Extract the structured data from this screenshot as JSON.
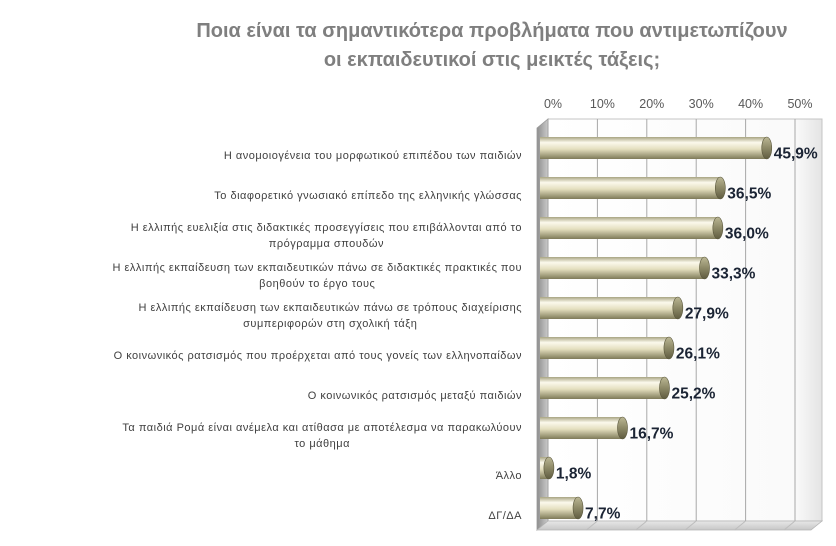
{
  "chart_data": {
    "type": "bar",
    "orientation": "horizontal",
    "title": "Ποια είναι τα σημαντικότερα προβλήματα που αντιμετωπίζουν\nοι εκπαιδευτικοί στις μεικτές τάξεις;",
    "categories": [
      "Η ανομοιογένεια του μορφωτικού επιπέδου των παιδιών",
      "Το διαφορετικό γνωσιακό επίπεδο της ελληνικής γλώσσας",
      "Η ελλιπής ευελιξία στις διδακτικές προσεγγίσεις που επιβάλλονται από το\nπρόγραμμα σπουδών",
      "Η ελλιπής εκπαίδευση των εκπαιδευτικών πάνω σε διδακτικές πρακτικές που\nβοηθούν το έργο τους",
      "Η ελλιπής εκπαίδευση των εκπαιδευτικών πάνω σε τρόπους διαχείρισης\nσυμπεριφορών στη σχολική τάξη",
      "Ο κοινωνικός ρατσισμός που προέρχεται από τους γονείς των ελληνοπαίδων",
      "Ο κοινωνικός ρατσισμός μεταξύ παιδιών",
      "Τα παιδιά Ρομά είναι ανέμελα και ατίθασα με αποτέλεσμα να παρακωλύουν\nτο μάθημα",
      "Άλλο",
      "ΔΓ/ΔΑ"
    ],
    "values": [
      45.9,
      36.5,
      36.0,
      33.3,
      27.9,
      26.1,
      25.2,
      16.7,
      1.8,
      7.7
    ],
    "data_labels": [
      "45,9%",
      "36,5%",
      "36,0%",
      "33,3%",
      "27,9%",
      "26,1%",
      "25,2%",
      "16,7%",
      "1,8%",
      "7,7%"
    ],
    "xticks": [
      0,
      10,
      20,
      30,
      40,
      50
    ],
    "xtick_labels": [
      "0%",
      "10%",
      "20%",
      "30%",
      "40%",
      "50%"
    ],
    "xlim": [
      0,
      55
    ],
    "grid": true,
    "legend": "none",
    "colors": {
      "bar_highlight": "#fbf9ec",
      "bar": "#e4dfbf",
      "bar_shadow": "#7e7a58",
      "bar_end": "#8d8967",
      "title": "#7f7f7f",
      "category_labels": "#404040",
      "value_labels": "#1b2434",
      "gridlines": "#a8a8a8"
    }
  }
}
